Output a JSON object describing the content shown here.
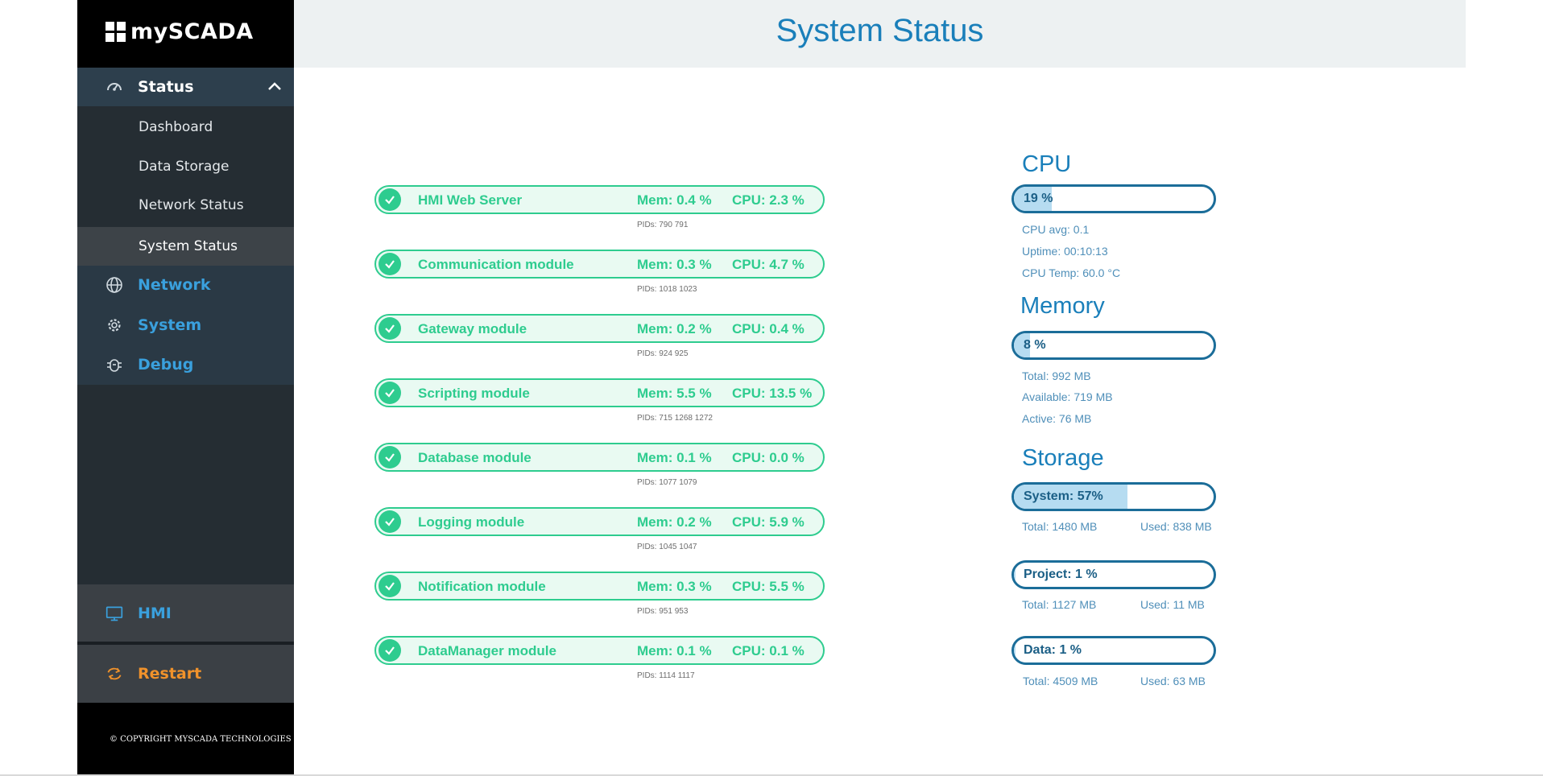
{
  "brand": {
    "name": "mySCADA"
  },
  "header": {
    "title": "System Status"
  },
  "sidebar": {
    "status": {
      "label": "Status",
      "icon": "gauge-icon"
    },
    "sub_items": [
      {
        "label": "Dashboard"
      },
      {
        "label": "Data Storage"
      },
      {
        "label": "Network Status"
      },
      {
        "label": "System Status",
        "active": true
      }
    ],
    "items": [
      {
        "label": "Network",
        "icon": "globe-icon"
      },
      {
        "label": "System",
        "icon": "gear-icon"
      },
      {
        "label": "Debug",
        "icon": "bug-icon"
      }
    ],
    "hmi": {
      "label": "HMI",
      "icon": "monitor-icon"
    },
    "restart": {
      "label": "Restart",
      "icon": "refresh-icon"
    },
    "copyright": "© COPYRIGHT MYSCADA TECHNOLOGIES"
  },
  "modules": [
    {
      "name": "HMI Web Server",
      "mem": "Mem: 0.4 %",
      "cpu": "CPU: 2.3 %",
      "pids": "PIDs: 790 791"
    },
    {
      "name": "Communication module",
      "mem": "Mem: 0.3 %",
      "cpu": "CPU: 4.7 %",
      "pids": "PIDs: 1018 1023"
    },
    {
      "name": "Gateway module",
      "mem": "Mem: 0.2 %",
      "cpu": "CPU: 0.4 %",
      "pids": "PIDs: 924 925"
    },
    {
      "name": "Scripting module",
      "mem": "Mem: 5.5 %",
      "cpu": "CPU: 13.5 %",
      "pids": "PIDs: 715 1268 1272"
    },
    {
      "name": "Database module",
      "mem": "Mem: 0.1 %",
      "cpu": "CPU: 0.0 %",
      "pids": "PIDs: 1077 1079"
    },
    {
      "name": "Logging module",
      "mem": "Mem: 0.2 %",
      "cpu": "CPU: 5.9 %",
      "pids": "PIDs: 1045 1047"
    },
    {
      "name": "Notification module",
      "mem": "Mem: 0.3 %",
      "cpu": "CPU: 5.5 %",
      "pids": "PIDs: 951 953"
    },
    {
      "name": "DataManager module",
      "mem": "Mem: 0.1 %",
      "cpu": "CPU: 0.1 %",
      "pids": "PIDs: 1114 1117"
    }
  ],
  "cpu": {
    "title": "CPU",
    "bar_label": "19 %",
    "percent": 19,
    "avg": "CPU avg: 0.1",
    "uptime": "Uptime: 00:10:13",
    "temp": "CPU Temp: 60.0 °C"
  },
  "memory": {
    "title": "Memory",
    "bar_label": "8 %",
    "percent": 8,
    "total": "Total: 992 MB",
    "available": "Available: 719 MB",
    "active": "Active: 76 MB"
  },
  "storage": {
    "title": "Storage",
    "system": {
      "label": "System: 57%",
      "percent": 57,
      "total": "Total: 1480 MB",
      "used": "Used: 838 MB"
    },
    "project": {
      "label": "Project: 1 %",
      "percent": 1,
      "total": "Total: 1127 MB",
      "used": "Used: 11 MB"
    },
    "data": {
      "label": "Data: 1 %",
      "percent": 1,
      "total": "Total: 4509 MB",
      "used": "Used: 63 MB"
    }
  },
  "colors": {
    "accent": "#1a7fba",
    "ok_green": "#2ecc8f",
    "restart_orange": "#f0922b",
    "sidebar_bg": "#252d33"
  }
}
